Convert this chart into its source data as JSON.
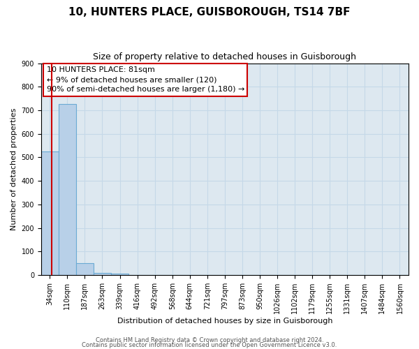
{
  "title": "10, HUNTERS PLACE, GUISBOROUGH, TS14 7BF",
  "subtitle": "Size of property relative to detached houses in Guisborough",
  "xlabel": "Distribution of detached houses by size in Guisborough",
  "ylabel": "Number of detached properties",
  "bar_values": [
    525,
    728,
    50,
    10,
    5,
    0,
    0,
    0,
    0,
    0,
    0,
    0,
    0,
    0,
    0,
    0,
    0,
    0,
    0,
    0,
    0
  ],
  "bar_labels": [
    "34sqm",
    "110sqm",
    "187sqm",
    "263sqm",
    "339sqm",
    "416sqm",
    "492sqm",
    "568sqm",
    "644sqm",
    "721sqm",
    "797sqm",
    "873sqm",
    "950sqm",
    "1026sqm",
    "1102sqm",
    "1179sqm",
    "1255sqm",
    "1331sqm",
    "1407sqm",
    "1484sqm",
    "1560sqm"
  ],
  "bar_color": "#b8d0e8",
  "bar_edge_color": "#6aaad4",
  "grid_color": "#c5d8e8",
  "bg_color": "#dde8f0",
  "annotation_box_color": "#ffffff",
  "annotation_border_color": "#cc0000",
  "property_line_color": "#cc0000",
  "property_label": "10 HUNTERS PLACE: 81sqm",
  "annotation_line1": "← 9% of detached houses are smaller (120)",
  "annotation_line2": "90% of semi-detached houses are larger (1,180) →",
  "ylim": [
    0,
    900
  ],
  "yticks": [
    0,
    100,
    200,
    300,
    400,
    500,
    600,
    700,
    800,
    900
  ],
  "footer1": "Contains HM Land Registry data © Crown copyright and database right 2024.",
  "footer2": "Contains public sector information licensed under the Open Government Licence v3.0.",
  "title_fontsize": 11,
  "subtitle_fontsize": 9,
  "ylabel_fontsize": 8,
  "xlabel_fontsize": 8,
  "tick_fontsize": 7,
  "annotation_fontsize": 8,
  "footer_fontsize": 6
}
